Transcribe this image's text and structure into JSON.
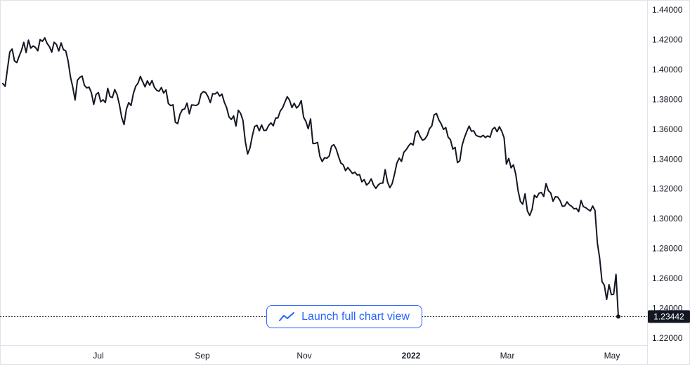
{
  "chart_data": {
    "type": "line",
    "title": "",
    "xlabel": "",
    "ylabel": "",
    "x_ticks": [
      "Jul",
      "Sep",
      "Nov",
      "2022",
      "Mar",
      "May"
    ],
    "bold_x_ticks": [
      "2022"
    ],
    "y_ticks": [
      "1.44000",
      "1.42000",
      "1.40000",
      "1.38000",
      "1.36000",
      "1.34000",
      "1.32000",
      "1.30000",
      "1.28000",
      "1.26000",
      "1.24000",
      "1.22000"
    ],
    "ylim": [
      1.21,
      1.445
    ],
    "last_value": 1.23442,
    "last_value_label": "1.23442",
    "grid": false,
    "colors": {
      "line": "#131722",
      "last_label_bg": "#131722",
      "last_label_text": "#ffffff",
      "axis_text": "#131722",
      "border": "#e0e3eb"
    },
    "series": [
      {
        "values": [
          1.3906,
          1.3887,
          1.4005,
          1.4118,
          1.4138,
          1.4058,
          1.4046,
          1.4089,
          1.4128,
          1.4182,
          1.4114,
          1.4197,
          1.4143,
          1.4158,
          1.4148,
          1.4125,
          1.4201,
          1.4189,
          1.4212,
          1.4175,
          1.4153,
          1.4117,
          1.4183,
          1.4168,
          1.4124,
          1.4178,
          1.4133,
          1.4125,
          1.4058,
          1.3952,
          1.3882,
          1.3796,
          1.3928,
          1.3947,
          1.3956,
          1.3894,
          1.3877,
          1.3882,
          1.3844,
          1.3766,
          1.3833,
          1.3846,
          1.3784,
          1.3797,
          1.3779,
          1.3874,
          1.3818,
          1.3812,
          1.3866,
          1.3832,
          1.3765,
          1.3679,
          1.3631,
          1.3734,
          1.3778,
          1.3759,
          1.3839,
          1.3888,
          1.3909,
          1.3954,
          1.3918,
          1.3884,
          1.3924,
          1.3895,
          1.3926,
          1.3881,
          1.3861,
          1.3854,
          1.3879,
          1.3842,
          1.3863,
          1.3772,
          1.3758,
          1.3764,
          1.3647,
          1.3637,
          1.3701,
          1.3731,
          1.3736,
          1.3775,
          1.3703,
          1.3763,
          1.3761,
          1.3759,
          1.3771,
          1.3836,
          1.3852,
          1.3846,
          1.3819,
          1.3778,
          1.3838,
          1.3836,
          1.3848,
          1.3822,
          1.3835,
          1.3781,
          1.3744,
          1.3683,
          1.3665,
          1.3689,
          1.3621,
          1.3727,
          1.3706,
          1.3659,
          1.3519,
          1.3434,
          1.3474,
          1.3554,
          1.3618,
          1.3626,
          1.3589,
          1.3628,
          1.3591,
          1.3593,
          1.3625,
          1.3642,
          1.3623,
          1.3674,
          1.3676,
          1.3722,
          1.3743,
          1.3781,
          1.3818,
          1.3794,
          1.3745,
          1.3774,
          1.3742,
          1.3758,
          1.3792,
          1.3681,
          1.3652,
          1.3603,
          1.3669,
          1.3504,
          1.3505,
          1.3511,
          1.3417,
          1.3383,
          1.3409,
          1.3405,
          1.3421,
          1.3486,
          1.3496,
          1.3467,
          1.3416,
          1.3373,
          1.3362,
          1.3322,
          1.3343,
          1.3323,
          1.3303,
          1.3312,
          1.3293,
          1.3296,
          1.3247,
          1.3262,
          1.3226,
          1.3239,
          1.3267,
          1.3226,
          1.3203,
          1.3226,
          1.3238,
          1.3239,
          1.3329,
          1.3246,
          1.3208,
          1.3235,
          1.3298,
          1.3372,
          1.3406,
          1.3384,
          1.3445,
          1.3462,
          1.3487,
          1.3506,
          1.3494,
          1.3574,
          1.3589,
          1.3552,
          1.3526,
          1.3534,
          1.3557,
          1.3603,
          1.3622,
          1.3697,
          1.3705,
          1.3663,
          1.3636,
          1.3599,
          1.3611,
          1.3547,
          1.3529,
          1.3467,
          1.3478,
          1.3376,
          1.3388,
          1.3492,
          1.3544,
          1.3585,
          1.3621,
          1.3586,
          1.3589,
          1.3558,
          1.3552,
          1.3548,
          1.3559,
          1.3544,
          1.3555,
          1.3547,
          1.3599,
          1.3612,
          1.3583,
          1.3617,
          1.3586,
          1.3543,
          1.3366,
          1.3404,
          1.3341,
          1.3361,
          1.3299,
          1.3188,
          1.3116,
          1.3097,
          1.3167,
          1.3052,
          1.3022,
          1.3062,
          1.3158,
          1.3142,
          1.3171,
          1.3176,
          1.3149,
          1.3236,
          1.3188,
          1.3173,
          1.3117,
          1.3147,
          1.3145,
          1.3122,
          1.3083,
          1.3086,
          1.3113,
          1.3093,
          1.3083,
          1.3066,
          1.3069,
          1.3047,
          1.3122,
          1.3081,
          1.3074,
          1.3062,
          1.3052,
          1.3085,
          1.3055,
          1.2839,
          1.2735,
          1.2579,
          1.2554,
          1.2459,
          1.2558,
          1.2491,
          1.2494,
          1.2627,
          1.23442
        ]
      }
    ]
  },
  "launch_button": {
    "label": "Launch full chart view",
    "icon": "line-chart-icon"
  }
}
